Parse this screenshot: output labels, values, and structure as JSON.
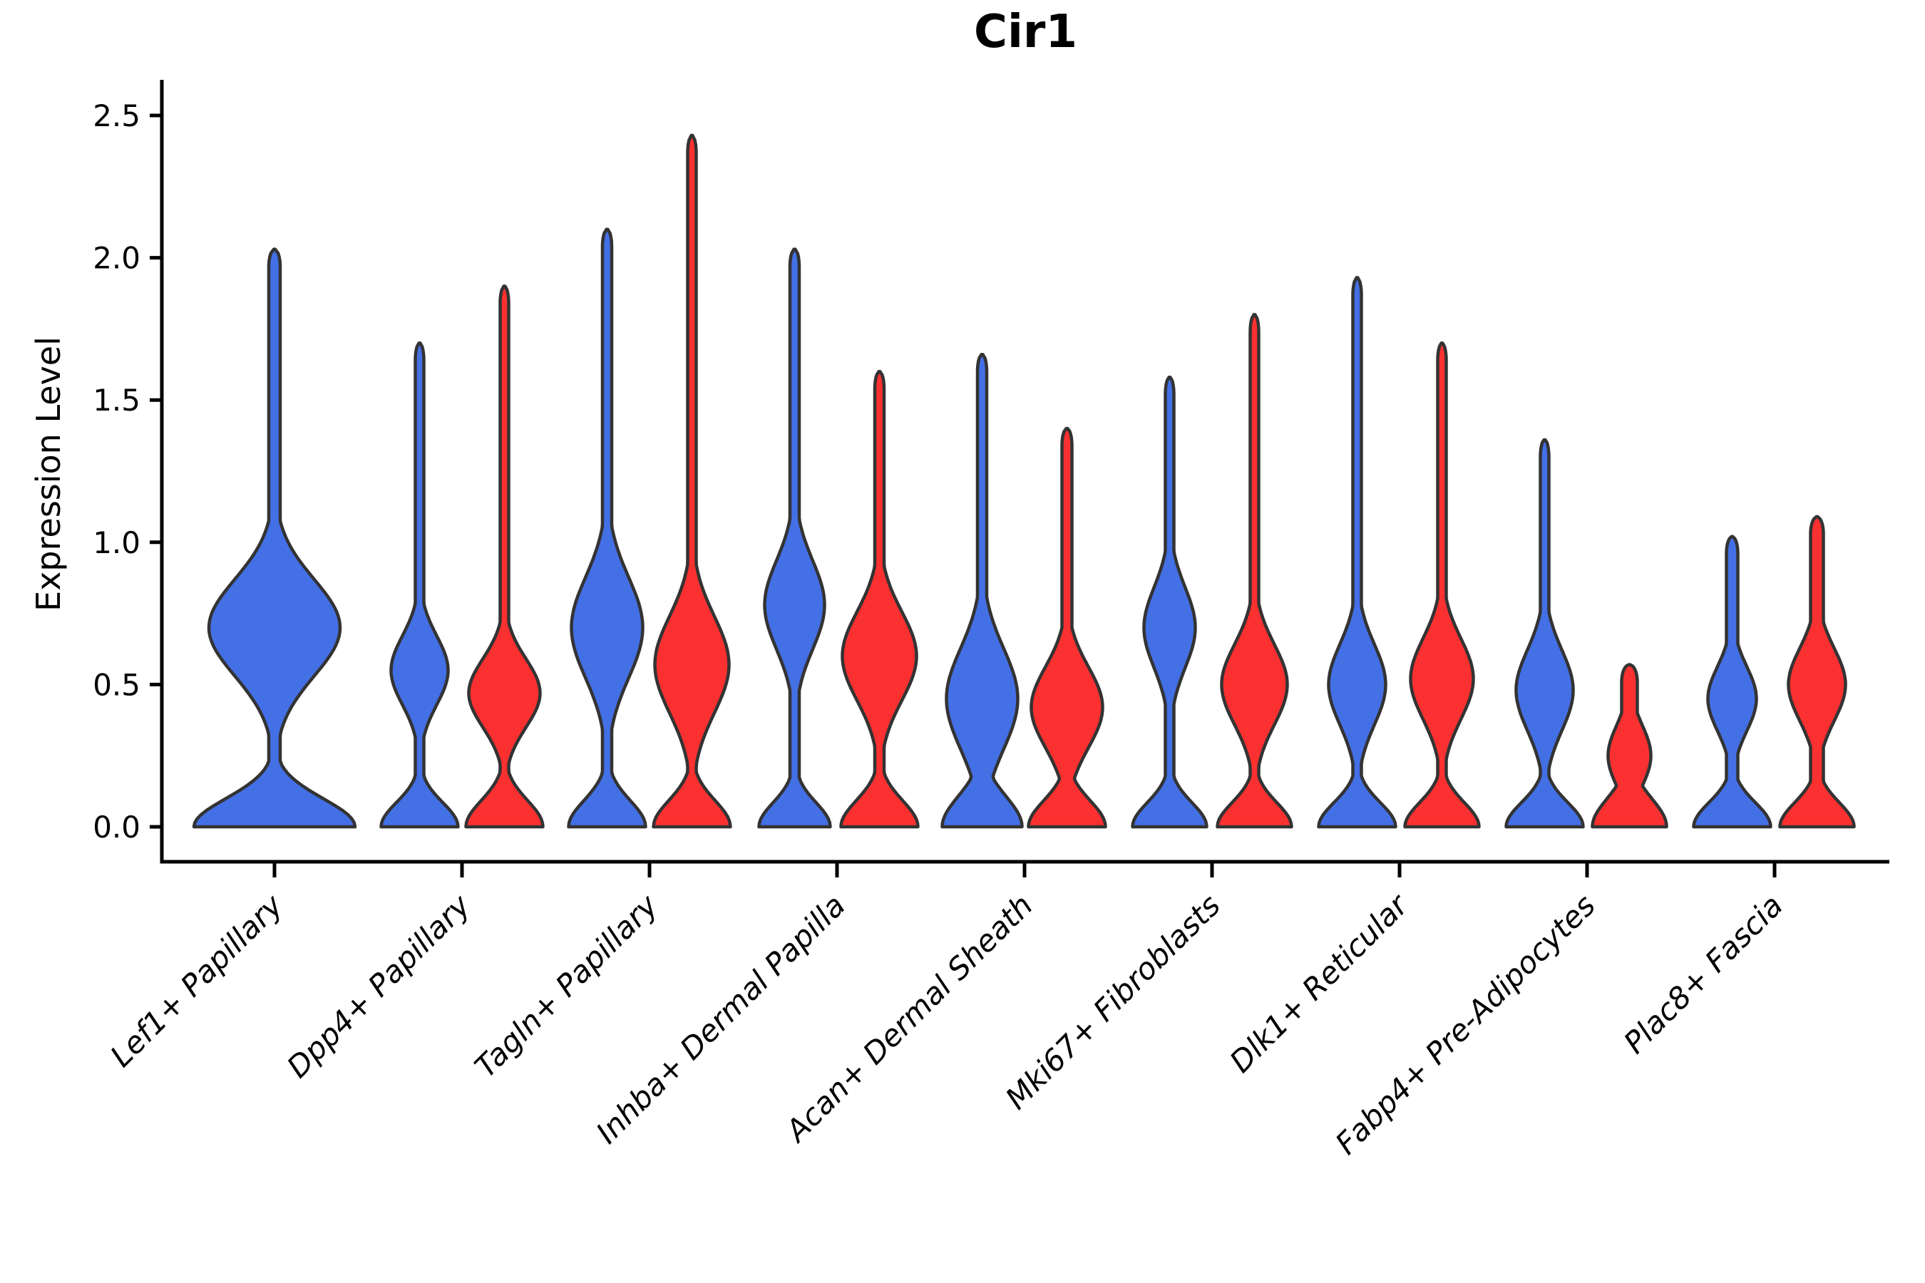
{
  "chart_data": {
    "type": "violin",
    "title": "Cir1",
    "xlabel": "",
    "ylabel": "Expression Level",
    "ylim": [
      0,
      2.5
    ],
    "yticks": [
      "0.0",
      "0.5",
      "1.0",
      "1.5",
      "2.0",
      "2.5"
    ],
    "ytick_values": [
      0.0,
      0.5,
      1.0,
      1.5,
      2.0,
      2.5
    ],
    "grid": false,
    "legend": "none",
    "colors": {
      "blue": "#4470E6",
      "red": "#FB3030",
      "outline": "#333333",
      "axis": "#000000"
    },
    "categories": [
      "Lef1+ Papillary",
      "Dpp4+ Papillary",
      "Tagln+ Papillary",
      "Inhba+ Dermal Papilla",
      "Acan+ Dermal Sheath",
      "Mki67+ Fibroblasts",
      "Dlk1+ Reticular",
      "Fabp4+ Pre-Adipocytes",
      "Plac8+ Fascia"
    ],
    "series": [
      {
        "name": "blue",
        "color": "#4470E6",
        "max_expression": [
          2.03,
          1.7,
          2.1,
          2.03,
          1.66,
          1.58,
          1.93,
          1.36,
          1.02
        ]
      },
      {
        "name": "red",
        "color": "#FB3030",
        "max_expression": [
          null,
          1.9,
          2.43,
          1.6,
          1.4,
          1.8,
          1.7,
          0.57,
          1.09
        ]
      }
    ],
    "violins": [
      {
        "category": 0,
        "color": "blue",
        "side": "center",
        "max": 2.03,
        "base_hw": 113,
        "base_sig": 0.14,
        "bulge_c": 0.7,
        "bulge_hw": 92,
        "bulge_sig": 0.24,
        "spike_hw": 8
      },
      {
        "category": 1,
        "color": "blue",
        "side": "left",
        "max": 1.7,
        "base_hw": 54,
        "base_sig": 0.12,
        "bulge_c": 0.55,
        "bulge_hw": 40,
        "bulge_sig": 0.17,
        "spike_hw": 6
      },
      {
        "category": 1,
        "color": "red",
        "side": "right",
        "max": 1.9,
        "base_hw": 54,
        "base_sig": 0.13,
        "bulge_c": 0.47,
        "bulge_hw": 50,
        "bulge_sig": 0.17,
        "spike_hw": 6
      },
      {
        "category": 2,
        "color": "blue",
        "side": "left",
        "max": 2.1,
        "base_hw": 54,
        "base_sig": 0.13,
        "bulge_c": 0.7,
        "bulge_hw": 50,
        "bulge_sig": 0.25,
        "spike_hw": 6.5
      },
      {
        "category": 2,
        "color": "red",
        "side": "right",
        "max": 2.43,
        "base_hw": 54,
        "base_sig": 0.13,
        "bulge_c": 0.57,
        "bulge_hw": 52,
        "bulge_sig": 0.24,
        "spike_hw": 6
      },
      {
        "category": 3,
        "color": "blue",
        "side": "left",
        "max": 2.03,
        "base_hw": 50,
        "base_sig": 0.12,
        "bulge_c": 0.78,
        "bulge_hw": 42,
        "bulge_sig": 0.22,
        "spike_hw": 6.5
      },
      {
        "category": 3,
        "color": "red",
        "side": "right",
        "max": 1.6,
        "base_hw": 54,
        "base_sig": 0.13,
        "bulge_c": 0.6,
        "bulge_hw": 52,
        "bulge_sig": 0.22,
        "spike_hw": 6.5
      },
      {
        "category": 4,
        "color": "blue",
        "side": "left",
        "max": 1.66,
        "base_hw": 56,
        "base_sig": 0.15,
        "bulge_c": 0.45,
        "bulge_hw": 50,
        "bulge_sig": 0.25,
        "spike_hw": 6.5
      },
      {
        "category": 4,
        "color": "red",
        "side": "right",
        "max": 1.4,
        "base_hw": 54,
        "base_sig": 0.13,
        "bulge_c": 0.42,
        "bulge_hw": 50,
        "bulge_sig": 0.2,
        "spike_hw": 7
      },
      {
        "category": 5,
        "color": "blue",
        "side": "left",
        "max": 1.58,
        "base_hw": 52,
        "base_sig": 0.12,
        "bulge_c": 0.7,
        "bulge_hw": 36,
        "bulge_sig": 0.2,
        "spike_hw": 6
      },
      {
        "category": 5,
        "color": "red",
        "side": "right",
        "max": 1.8,
        "base_hw": 52,
        "base_sig": 0.12,
        "bulge_c": 0.5,
        "bulge_hw": 46,
        "bulge_sig": 0.2,
        "spike_hw": 6
      },
      {
        "category": 6,
        "color": "blue",
        "side": "left",
        "max": 1.93,
        "base_hw": 54,
        "base_sig": 0.12,
        "bulge_c": 0.5,
        "bulge_hw": 40,
        "bulge_sig": 0.2,
        "spike_hw": 6
      },
      {
        "category": 6,
        "color": "red",
        "side": "right",
        "max": 1.7,
        "base_hw": 52,
        "base_sig": 0.12,
        "bulge_c": 0.52,
        "bulge_hw": 44,
        "bulge_sig": 0.2,
        "spike_hw": 6
      },
      {
        "category": 7,
        "color": "blue",
        "side": "left",
        "max": 1.36,
        "base_hw": 54,
        "base_sig": 0.12,
        "bulge_c": 0.48,
        "bulge_hw": 40,
        "bulge_sig": 0.2,
        "spike_hw": 6
      },
      {
        "category": 7,
        "color": "red",
        "side": "right",
        "max": 0.57,
        "base_hw": 52,
        "base_sig": 0.14,
        "bulge_c": 0.25,
        "bulge_hw": 30,
        "bulge_sig": 0.15,
        "spike_hw": 11
      },
      {
        "category": 8,
        "color": "blue",
        "side": "left",
        "max": 1.02,
        "base_hw": 54,
        "base_sig": 0.12,
        "bulge_c": 0.45,
        "bulge_hw": 34,
        "bulge_sig": 0.16,
        "spike_hw": 8
      },
      {
        "category": 8,
        "color": "red",
        "side": "right",
        "max": 1.09,
        "base_hw": 52,
        "base_sig": 0.12,
        "bulge_c": 0.5,
        "bulge_hw": 40,
        "bulge_sig": 0.18,
        "spike_hw": 9
      }
    ]
  }
}
